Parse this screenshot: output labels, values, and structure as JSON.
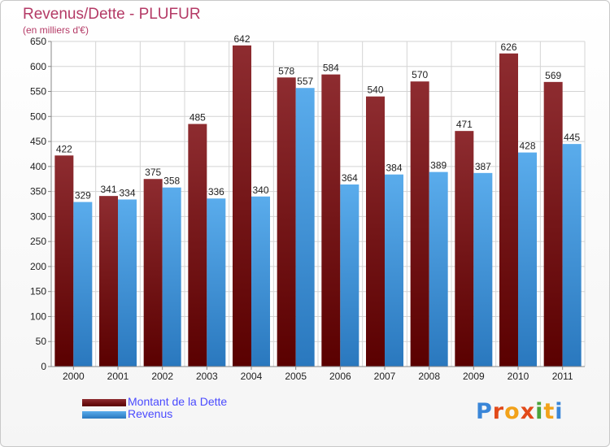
{
  "title": "Revenus/Dette - PLUFUR",
  "subtitle": "(en milliers d'€)",
  "colors": {
    "dette": "#7a1a1e",
    "revenus": "#3c96dc",
    "axis_text": "#222222",
    "title": "#b43a66"
  },
  "legend": {
    "dette_label": "Montant de la Dette",
    "revenus_label": "Revenus"
  },
  "logo": "Proxiti",
  "chart_data": {
    "type": "bar",
    "categories": [
      "2000",
      "2001",
      "2002",
      "2003",
      "2004",
      "2005",
      "2006",
      "2007",
      "2008",
      "2009",
      "2010",
      "2011"
    ],
    "series": [
      {
        "name": "Montant de la Dette",
        "values": [
          422,
          341,
          375,
          485,
          642,
          578,
          584,
          540,
          570,
          471,
          626,
          569
        ]
      },
      {
        "name": "Revenus",
        "values": [
          329,
          334,
          358,
          336,
          340,
          557,
          364,
          384,
          389,
          387,
          428,
          445
        ]
      }
    ],
    "ylim": [
      0,
      650
    ],
    "yticks": [
      0,
      50,
      100,
      150,
      200,
      250,
      300,
      350,
      400,
      450,
      500,
      550,
      600,
      650
    ],
    "grid": true,
    "legend_position": "bottom-left"
  }
}
